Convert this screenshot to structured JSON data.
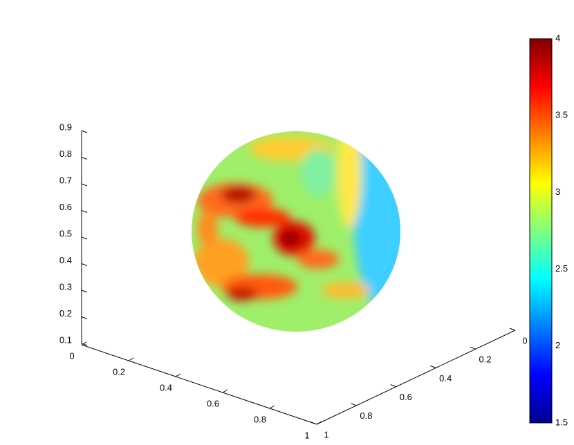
{
  "chart_data": {
    "type": "surface3d",
    "xlim": [
      0,
      1
    ],
    "xticks": [
      0,
      0.2,
      0.4,
      0.6,
      0.8,
      1
    ],
    "ylim": [
      0,
      1
    ],
    "yticks": [
      0,
      0.2,
      0.4,
      0.6,
      0.8,
      1
    ],
    "zlim": [
      0.1,
      0.9
    ],
    "zticks": [
      0.1,
      0.2,
      0.3,
      0.4,
      0.5,
      0.6,
      0.7,
      0.8,
      0.9
    ],
    "colorbar": {
      "clim": [
        1.5,
        4
      ],
      "ticks": [
        1.5,
        2,
        2.5,
        3,
        3.5,
        4
      ],
      "colormap": "jet"
    }
  }
}
